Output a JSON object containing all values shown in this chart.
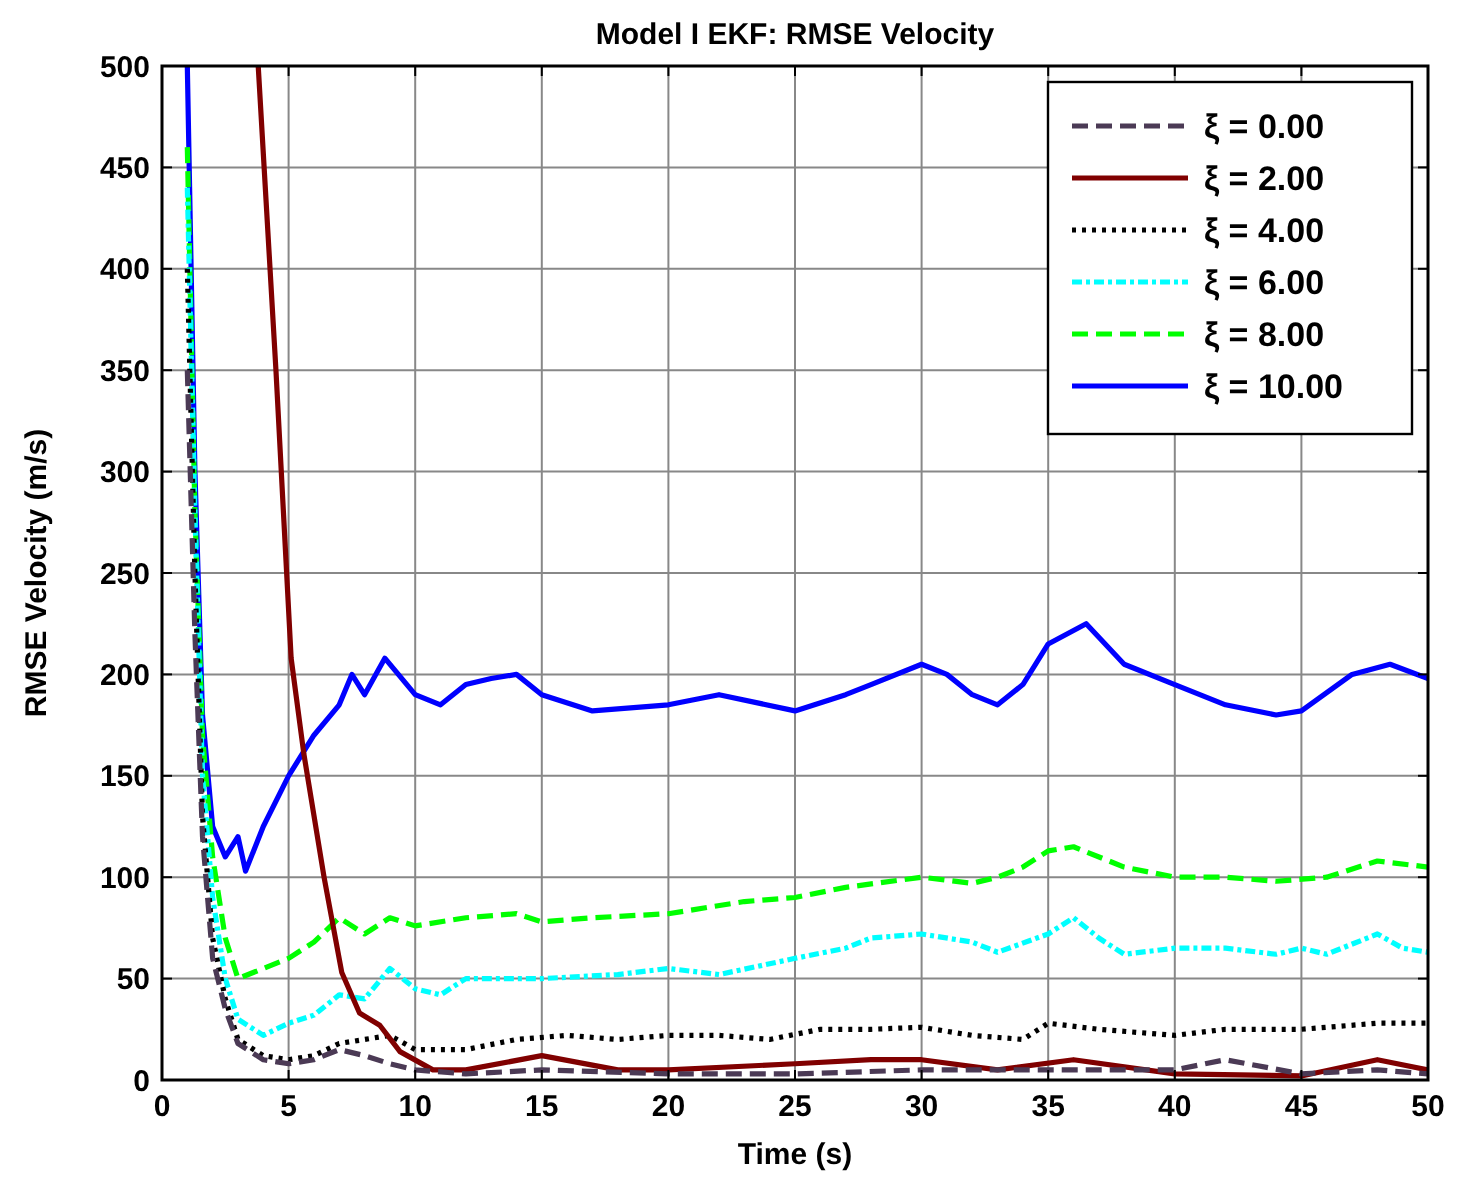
{
  "chart_data": {
    "type": "line",
    "title": "Model I EKF: RMSE Velocity",
    "xlabel": "Time (s)",
    "ylabel": "RMSE Velocity (m/s)",
    "xlim": [
      0,
      50
    ],
    "ylim": [
      0,
      500
    ],
    "xticks": [
      0,
      5,
      10,
      15,
      20,
      25,
      30,
      35,
      40,
      45,
      50
    ],
    "yticks": [
      0,
      50,
      100,
      150,
      200,
      250,
      300,
      350,
      400,
      450,
      500
    ],
    "grid": true,
    "legend": "top right",
    "series": [
      {
        "name": "ξ = 0.00",
        "color": "#4b3a55",
        "line_style": "dashed",
        "x": [
          1,
          1.3,
          1.6,
          2,
          2.5,
          3,
          4,
          5,
          6,
          7,
          8,
          9,
          10,
          12,
          15,
          20,
          25,
          30,
          35,
          40,
          42,
          45,
          48,
          50
        ],
        "values": [
          350,
          220,
          120,
          60,
          35,
          18,
          10,
          8,
          10,
          15,
          12,
          8,
          5,
          3,
          5,
          3,
          3,
          5,
          5,
          5,
          10,
          3,
          5,
          3
        ]
      },
      {
        "name": "ξ = 2.00",
        "color": "#800000",
        "line_style": "solid",
        "x": [
          3.8,
          4.5,
          5.1,
          5.6,
          6.4,
          7.1,
          7.8,
          8.6,
          9.4,
          10.7,
          12,
          15,
          18,
          20,
          25,
          28,
          30,
          33,
          36,
          40,
          45,
          48,
          50
        ],
        "values": [
          500,
          350,
          208,
          161,
          100,
          53,
          33,
          27,
          14,
          5,
          5,
          12,
          5,
          5,
          8,
          10,
          10,
          5,
          10,
          3,
          2,
          10,
          5
        ]
      },
      {
        "name": "ξ = 4.00",
        "color": "#000000",
        "line_style": "dotted",
        "x": [
          1,
          1.3,
          1.6,
          2,
          2.5,
          3,
          4,
          5,
          6,
          7,
          8,
          9,
          10,
          12,
          14,
          16,
          18,
          20,
          22,
          24,
          26,
          28,
          30,
          32,
          34,
          35,
          37,
          40,
          42,
          45,
          48,
          50
        ],
        "values": [
          400,
          250,
          130,
          70,
          40,
          20,
          12,
          10,
          12,
          18,
          20,
          22,
          15,
          15,
          20,
          22,
          20,
          22,
          22,
          20,
          25,
          25,
          26,
          22,
          20,
          28,
          25,
          22,
          25,
          25,
          28,
          28
        ]
      },
      {
        "name": "ξ = 6.00",
        "color": "#00ffff",
        "line_style": "dashdot",
        "x": [
          1,
          1.3,
          1.6,
          2,
          2.5,
          3,
          4,
          5,
          6,
          7,
          8,
          9,
          10,
          11,
          12,
          15,
          18,
          20,
          22,
          25,
          27,
          28,
          30,
          32,
          33,
          35,
          36,
          37,
          38,
          40,
          42,
          44,
          45,
          46,
          48,
          49,
          50
        ],
        "values": [
          440,
          280,
          150,
          90,
          50,
          30,
          22,
          28,
          32,
          42,
          40,
          55,
          45,
          42,
          50,
          50,
          52,
          55,
          52,
          60,
          65,
          70,
          72,
          68,
          63,
          72,
          80,
          70,
          62,
          65,
          65,
          62,
          65,
          62,
          72,
          65,
          63
        ]
      },
      {
        "name": "ξ = 8.00",
        "color": "#00ff00",
        "line_style": "dashed",
        "x": [
          1,
          1.3,
          1.6,
          2,
          2.5,
          3,
          4,
          5,
          6,
          7,
          8,
          9,
          10,
          12,
          14,
          15,
          17,
          20,
          23,
          25,
          27,
          30,
          32,
          33,
          34,
          35,
          36,
          38,
          40,
          42,
          44,
          46,
          48,
          50
        ],
        "values": [
          460,
          280,
          170,
          110,
          70,
          50,
          55,
          60,
          68,
          80,
          72,
          80,
          76,
          80,
          82,
          78,
          80,
          82,
          88,
          90,
          95,
          100,
          97,
          100,
          105,
          113,
          115,
          105,
          100,
          100,
          98,
          100,
          108,
          105
        ]
      },
      {
        "name": "ξ = 10.00",
        "color": "#0000ff",
        "line_style": "solid",
        "x": [
          1,
          1.3,
          1.6,
          2,
          2.5,
          3,
          3.3,
          4,
          5,
          6,
          7,
          7.5,
          8,
          8.8,
          10,
          11,
          12,
          13,
          14,
          15,
          17,
          20,
          22,
          25,
          27,
          28,
          30,
          31,
          32,
          33,
          34,
          35,
          36.5,
          38,
          40,
          42,
          44,
          45,
          47,
          48.5,
          50
        ],
        "values": [
          500,
          300,
          180,
          125,
          110,
          120,
          103,
          125,
          150,
          170,
          185,
          200,
          190,
          208,
          190,
          185,
          195,
          198,
          200,
          190,
          182,
          185,
          190,
          182,
          190,
          195,
          205,
          200,
          190,
          185,
          195,
          215,
          225,
          205,
          195,
          185,
          180,
          182,
          200,
          205,
          198
        ]
      }
    ]
  }
}
